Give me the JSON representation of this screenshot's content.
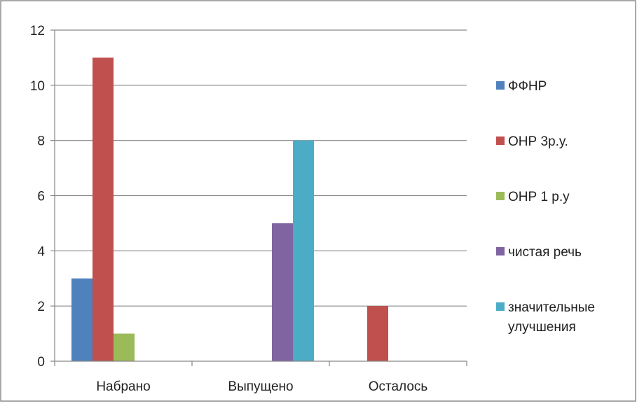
{
  "chart_data": {
    "type": "bar",
    "categories": [
      "Набрано",
      "Выпущено",
      "Осталось"
    ],
    "series": [
      {
        "name": "ФФНР",
        "values": [
          3,
          0,
          0
        ],
        "color": "#4F81BD"
      },
      {
        "name": "ОНР 3р.у.",
        "values": [
          11,
          0,
          2
        ],
        "color": "#C0504D"
      },
      {
        "name": "ОНР 1 р.у",
        "values": [
          1,
          0,
          0
        ],
        "color": "#9BBB59"
      },
      {
        "name": "чистая речь",
        "values": [
          0,
          5,
          0
        ],
        "color": "#8064A2"
      },
      {
        "name": "значительные улучшения",
        "values": [
          0,
          8,
          0
        ],
        "color": "#4BACC6"
      }
    ],
    "y_ticks": [
      0,
      2,
      4,
      6,
      8,
      10,
      12
    ],
    "ylim": [
      0,
      12
    ],
    "grid": true,
    "legend": "right"
  }
}
